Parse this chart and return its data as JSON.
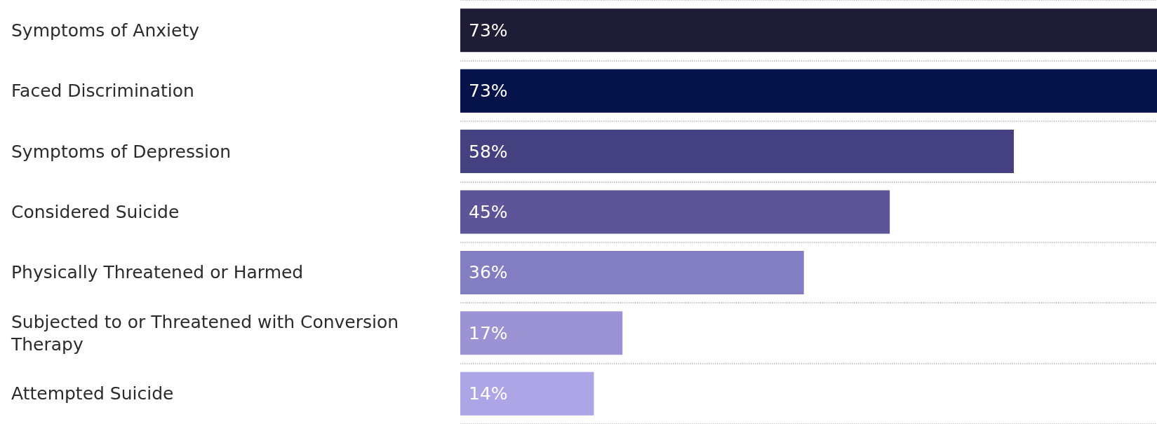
{
  "chart_data": {
    "type": "bar",
    "orientation": "horizontal",
    "categories": [
      "Symptoms of Anxiety",
      "Faced Discrimination",
      "Symptoms of Depression",
      "Considered Suicide",
      "Physically Threatened or Harmed",
      "Subjected to or Threatened with Conversion Therapy",
      "Attempted Suicide"
    ],
    "values": [
      73,
      73,
      58,
      45,
      36,
      17,
      14
    ],
    "colors": [
      "#1f1d35",
      "#06134a",
      "#454181",
      "#5c5698",
      "#837dc2",
      "#9b93d4",
      "#aca5e6"
    ],
    "value_labels": [
      "73%",
      "73%",
      "58%",
      "45%",
      "36%",
      "17%",
      "14%"
    ],
    "grid": "y"
  }
}
